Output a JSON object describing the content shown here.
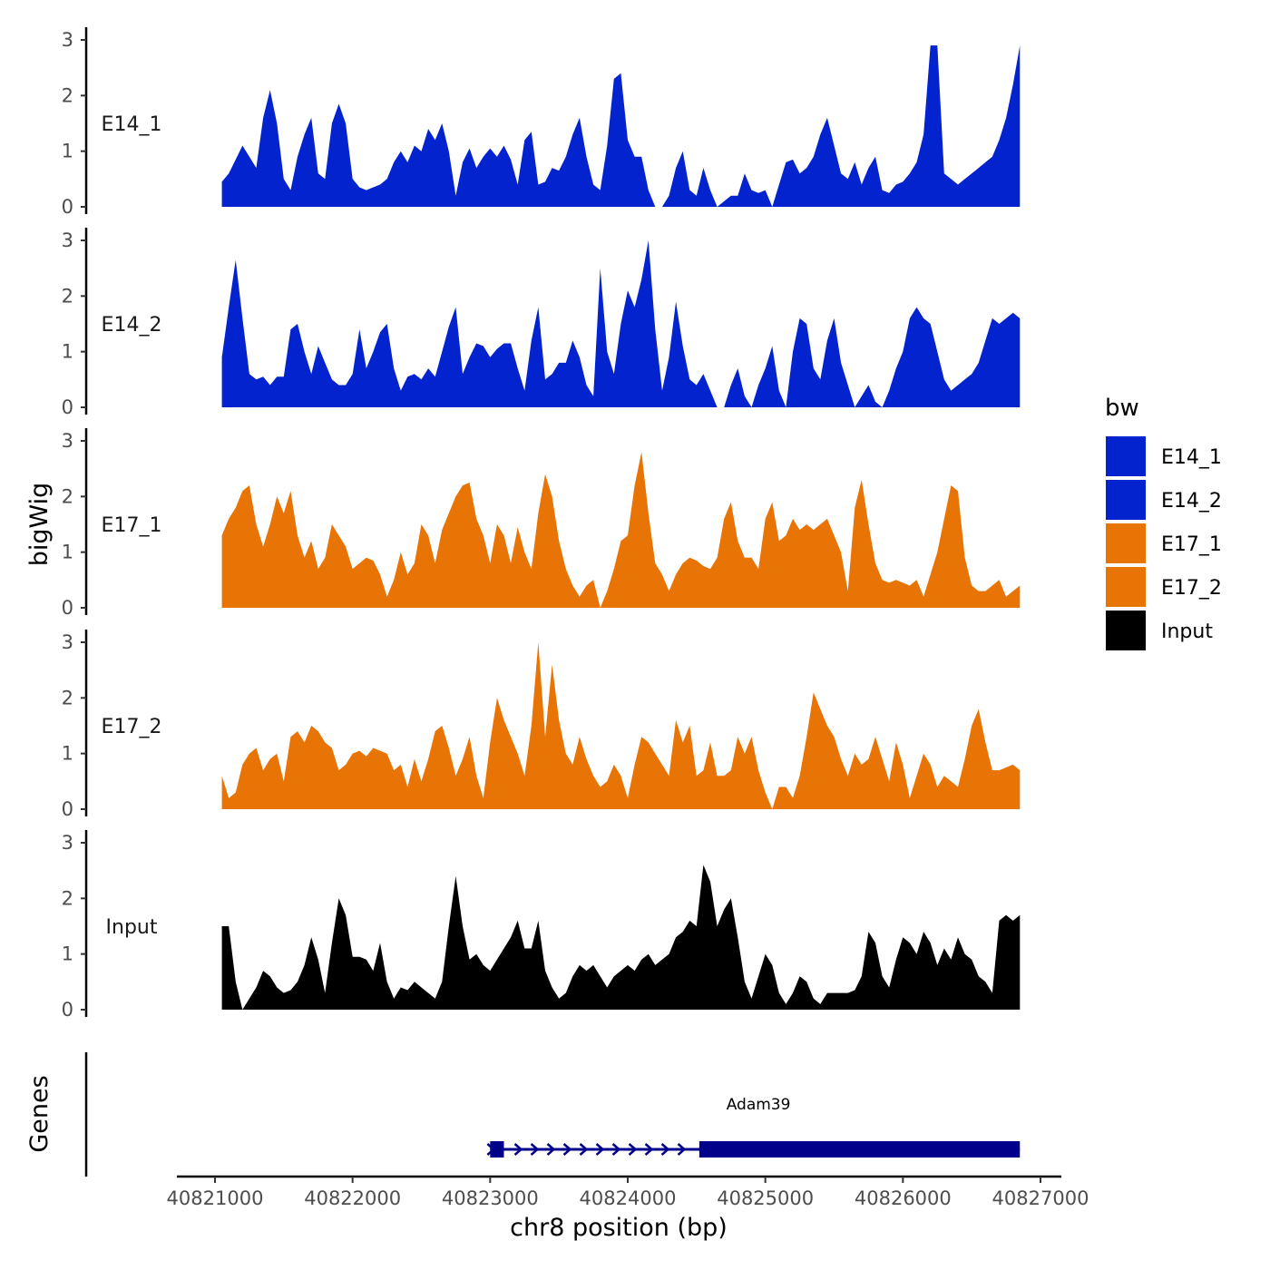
{
  "chart_data": {
    "type": "area",
    "xlabel": "chr8 position (bp)",
    "ylabel": "bigWig",
    "genes_label": "Genes",
    "xlim": [
      40820500,
      40827200
    ],
    "ylim": [
      0,
      3
    ],
    "x_ticks": [
      40821000,
      40822000,
      40823000,
      40824000,
      40825000,
      40826000,
      40827000
    ],
    "x_tick_labels": [
      "40821000",
      "40822000",
      "40823000",
      "40824000",
      "40825000",
      "40826000",
      "40827000"
    ],
    "y_ticks": [
      0,
      1,
      2,
      3
    ],
    "y_tick_labels": [
      "0",
      "1",
      "2",
      "3"
    ],
    "legend": {
      "title": "bw",
      "entries": [
        {
          "label": "E14_1",
          "color": "#0323CF"
        },
        {
          "label": "E14_2",
          "color": "#0323CF"
        },
        {
          "label": "E17_1",
          "color": "#E87406"
        },
        {
          "label": "E17_2",
          "color": "#E87406"
        },
        {
          "label": "Input",
          "color": "#000000"
        }
      ]
    },
    "x": [
      40821050,
      40821100,
      40821150,
      40821200,
      40821250,
      40821300,
      40821350,
      40821400,
      40821450,
      40821500,
      40821550,
      40821600,
      40821650,
      40821700,
      40821750,
      40821800,
      40821850,
      40821900,
      40821950,
      40822000,
      40822050,
      40822100,
      40822150,
      40822200,
      40822250,
      40822300,
      40822350,
      40822400,
      40822450,
      40822500,
      40822550,
      40822600,
      40822650,
      40822700,
      40822750,
      40822800,
      40822850,
      40822900,
      40822950,
      40823000,
      40823050,
      40823100,
      40823150,
      40823200,
      40823250,
      40823300,
      40823350,
      40823400,
      40823450,
      40823500,
      40823550,
      40823600,
      40823650,
      40823700,
      40823750,
      40823800,
      40823850,
      40823900,
      40823950,
      40824000,
      40824050,
      40824100,
      40824150,
      40824200,
      40824250,
      40824300,
      40824350,
      40824400,
      40824450,
      40824500,
      40824550,
      40824600,
      40824650,
      40824700,
      40824750,
      40824800,
      40824850,
      40824900,
      40824950,
      40825000,
      40825050,
      40825100,
      40825150,
      40825200,
      40825250,
      40825300,
      40825350,
      40825400,
      40825450,
      40825500,
      40825550,
      40825600,
      40825650,
      40825700,
      40825750,
      40825800,
      40825850,
      40825900,
      40825950,
      40826000,
      40826050,
      40826100,
      40826150,
      40826200,
      40826250,
      40826300,
      40826350,
      40826400,
      40826450,
      40826500,
      40826550,
      40826600,
      40826650,
      40826700,
      40826750,
      40826800,
      40826850
    ],
    "series": [
      {
        "name": "E14_1",
        "color": "#0323CF",
        "values": [
          0.45,
          0.6,
          0.85,
          1.1,
          0.9,
          0.7,
          1.6,
          2.1,
          1.5,
          0.5,
          0.3,
          0.9,
          1.3,
          1.6,
          0.6,
          0.5,
          1.5,
          1.85,
          1.5,
          0.5,
          0.35,
          0.3,
          0.35,
          0.4,
          0.5,
          0.8,
          1.0,
          0.8,
          1.1,
          1.0,
          1.4,
          1.2,
          1.5,
          1.0,
          0.2,
          0.8,
          1.05,
          0.7,
          0.9,
          1.05,
          0.9,
          1.1,
          0.85,
          0.4,
          1.2,
          1.35,
          0.4,
          0.45,
          0.7,
          0.65,
          0.9,
          1.3,
          1.6,
          0.9,
          0.4,
          0.3,
          1.1,
          2.3,
          2.4,
          1.2,
          0.9,
          0.9,
          0.3,
          0.0,
          0.0,
          0.2,
          0.7,
          1.0,
          0.3,
          0.2,
          0.7,
          0.3,
          0.0,
          0.1,
          0.2,
          0.2,
          0.6,
          0.3,
          0.25,
          0.3,
          0.0,
          0.4,
          0.8,
          0.85,
          0.6,
          0.7,
          0.9,
          1.3,
          1.6,
          1.1,
          0.6,
          0.5,
          0.8,
          0.4,
          0.7,
          0.9,
          0.3,
          0.25,
          0.4,
          0.45,
          0.6,
          0.8,
          1.3,
          2.9,
          2.9,
          0.6,
          0.5,
          0.4,
          0.5,
          0.6,
          0.7,
          0.8,
          0.9,
          1.2,
          1.6,
          2.2,
          2.9
        ]
      },
      {
        "name": "E14_2",
        "color": "#0323CF",
        "values": [
          0.9,
          1.8,
          2.65,
          1.6,
          0.6,
          0.5,
          0.55,
          0.4,
          0.55,
          0.55,
          1.4,
          1.5,
          1.0,
          0.6,
          1.1,
          0.8,
          0.5,
          0.4,
          0.4,
          0.6,
          1.4,
          0.7,
          1.0,
          1.35,
          1.5,
          0.7,
          0.3,
          0.55,
          0.6,
          0.5,
          0.7,
          0.55,
          1.0,
          1.45,
          1.8,
          0.6,
          0.9,
          1.15,
          1.1,
          0.9,
          1.05,
          1.15,
          1.15,
          0.7,
          0.3,
          1.2,
          1.8,
          0.5,
          0.6,
          0.8,
          0.8,
          1.2,
          0.9,
          0.4,
          0.2,
          2.5,
          1.0,
          0.6,
          1.5,
          2.1,
          1.8,
          2.3,
          3.0,
          1.4,
          0.3,
          0.9,
          1.9,
          1.1,
          0.5,
          0.4,
          0.6,
          0.3,
          0.0,
          0.0,
          0.4,
          0.7,
          0.2,
          0.0,
          0.4,
          0.7,
          1.1,
          0.3,
          0.0,
          1.0,
          1.6,
          1.5,
          0.7,
          0.5,
          1.2,
          1.6,
          0.8,
          0.4,
          0.0,
          0.2,
          0.4,
          0.1,
          0.0,
          0.3,
          0.7,
          1.0,
          1.6,
          1.8,
          1.6,
          1.5,
          1.0,
          0.5,
          0.3,
          0.4,
          0.5,
          0.6,
          0.8,
          1.2,
          1.6,
          1.5,
          1.6,
          1.7,
          1.6
        ]
      },
      {
        "name": "E17_1",
        "color": "#E87406",
        "values": [
          1.3,
          1.6,
          1.8,
          2.1,
          2.2,
          1.5,
          1.1,
          1.5,
          2.0,
          1.7,
          2.1,
          1.3,
          0.9,
          1.2,
          0.7,
          0.9,
          1.5,
          1.3,
          1.1,
          0.7,
          0.8,
          0.9,
          0.85,
          0.6,
          0.2,
          0.5,
          1.0,
          0.6,
          0.8,
          1.5,
          1.3,
          0.8,
          1.4,
          1.7,
          2.0,
          2.2,
          2.25,
          1.6,
          1.3,
          0.8,
          1.5,
          1.3,
          0.8,
          1.45,
          1.0,
          0.7,
          1.7,
          2.4,
          2.0,
          1.2,
          0.7,
          0.4,
          0.2,
          0.4,
          0.5,
          0.0,
          0.3,
          0.7,
          1.2,
          1.3,
          2.2,
          2.8,
          1.7,
          0.8,
          0.6,
          0.3,
          0.6,
          0.8,
          0.9,
          0.85,
          0.75,
          0.7,
          0.9,
          1.6,
          1.9,
          1.2,
          0.9,
          0.9,
          0.7,
          1.6,
          1.9,
          1.2,
          1.3,
          1.6,
          1.4,
          1.5,
          1.4,
          1.5,
          1.6,
          1.3,
          1.0,
          0.3,
          1.8,
          2.3,
          1.5,
          0.8,
          0.5,
          0.45,
          0.5,
          0.45,
          0.4,
          0.5,
          0.2,
          0.6,
          1.0,
          1.6,
          2.2,
          2.1,
          0.9,
          0.4,
          0.3,
          0.3,
          0.4,
          0.5,
          0.2,
          0.3,
          0.4
        ]
      },
      {
        "name": "E17_2",
        "color": "#E87406",
        "values": [
          0.6,
          0.2,
          0.3,
          0.8,
          1.0,
          1.1,
          0.7,
          0.9,
          1.0,
          0.5,
          1.3,
          1.4,
          1.2,
          1.5,
          1.4,
          1.2,
          1.1,
          0.7,
          0.8,
          1.0,
          1.05,
          0.95,
          1.1,
          1.05,
          1.0,
          0.7,
          0.8,
          0.4,
          0.9,
          0.5,
          0.9,
          1.4,
          1.5,
          1.1,
          0.6,
          0.9,
          1.3,
          0.6,
          0.2,
          1.2,
          2.0,
          1.6,
          1.3,
          1.0,
          0.6,
          1.5,
          3.0,
          1.3,
          2.6,
          1.6,
          1.0,
          0.8,
          1.3,
          0.9,
          0.6,
          0.4,
          0.5,
          0.8,
          0.6,
          0.2,
          0.8,
          1.3,
          1.2,
          1.0,
          0.8,
          0.6,
          1.6,
          1.2,
          1.5,
          0.6,
          0.7,
          1.2,
          0.6,
          0.6,
          0.7,
          1.3,
          1.0,
          1.3,
          0.7,
          0.3,
          0.0,
          0.4,
          0.4,
          0.2,
          0.6,
          1.3,
          2.1,
          1.8,
          1.5,
          1.3,
          0.9,
          0.6,
          1.0,
          0.8,
          0.9,
          1.3,
          0.9,
          0.5,
          1.2,
          0.8,
          0.2,
          0.6,
          1.0,
          0.8,
          0.4,
          0.6,
          0.5,
          0.4,
          0.9,
          1.5,
          1.8,
          1.2,
          0.7,
          0.7,
          0.75,
          0.8,
          0.7
        ]
      },
      {
        "name": "Input",
        "color": "#000000",
        "values": [
          1.5,
          1.5,
          0.5,
          0.0,
          0.2,
          0.4,
          0.7,
          0.6,
          0.4,
          0.3,
          0.35,
          0.5,
          0.8,
          1.3,
          0.9,
          0.3,
          1.2,
          2.0,
          1.7,
          0.95,
          0.95,
          0.9,
          0.7,
          1.2,
          0.5,
          0.2,
          0.4,
          0.35,
          0.5,
          0.4,
          0.3,
          0.2,
          0.5,
          1.5,
          2.4,
          1.5,
          0.9,
          1.0,
          0.8,
          0.7,
          0.9,
          1.1,
          1.3,
          1.6,
          1.1,
          1.1,
          1.6,
          0.7,
          0.4,
          0.2,
          0.3,
          0.6,
          0.8,
          0.7,
          0.8,
          0.6,
          0.4,
          0.6,
          0.7,
          0.8,
          0.7,
          0.9,
          1.0,
          0.8,
          0.9,
          1.0,
          1.3,
          1.4,
          1.6,
          1.5,
          2.6,
          2.3,
          1.5,
          1.8,
          2.0,
          1.3,
          0.5,
          0.2,
          0.6,
          1.0,
          0.8,
          0.3,
          0.1,
          0.3,
          0.6,
          0.5,
          0.2,
          0.1,
          0.3,
          0.3,
          0.3,
          0.3,
          0.35,
          0.6,
          1.4,
          1.2,
          0.6,
          0.4,
          0.9,
          1.3,
          1.2,
          1.0,
          1.4,
          1.2,
          0.8,
          1.1,
          0.9,
          1.3,
          1.0,
          0.9,
          0.6,
          0.5,
          0.3,
          1.6,
          1.7,
          1.6,
          1.7
        ]
      }
    ],
    "gene": {
      "name": "Adam39",
      "color": "#00008B",
      "start": 40823000,
      "end": 40826850,
      "strand": "+",
      "exons": [
        [
          40823000,
          40823100
        ],
        [
          40824520,
          40826850
        ]
      ]
    }
  }
}
